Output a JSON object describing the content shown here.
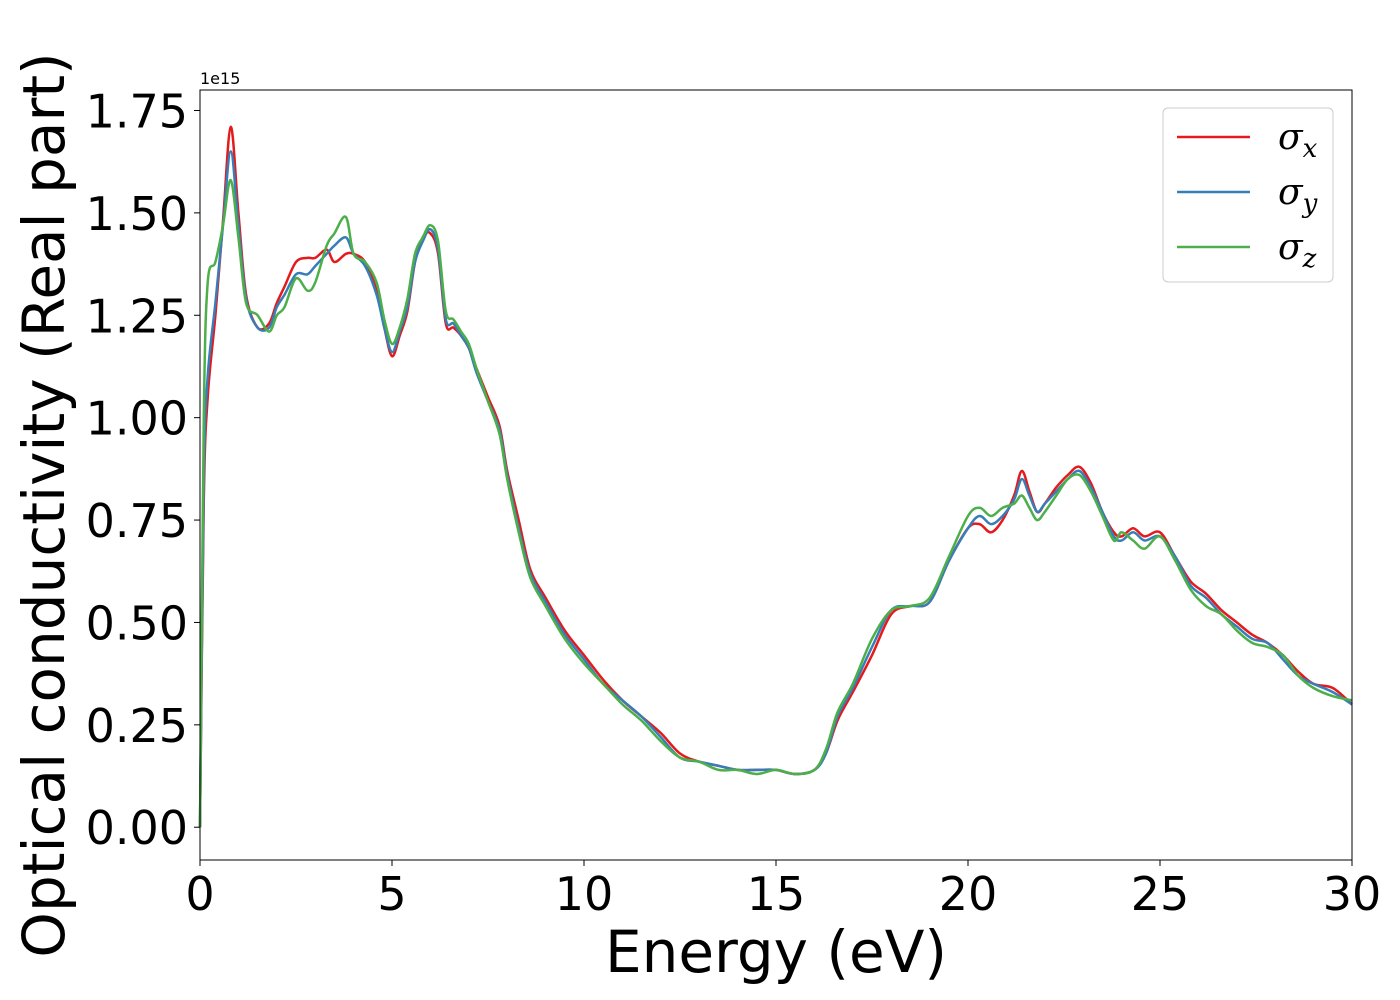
{
  "chart_data": {
    "type": "line",
    "xlabel": "Energy (eV)",
    "ylabel": "Optical conductivity (Real part)",
    "y_offset_label": "1e15",
    "xlim": [
      0,
      30
    ],
    "ylim": [
      -0.08,
      1.8
    ],
    "x_ticks": [
      0,
      5,
      10,
      15,
      20,
      25,
      30
    ],
    "x_tick_labels": [
      "0",
      "5",
      "10",
      "15",
      "20",
      "25",
      "30"
    ],
    "y_ticks": [
      0.0,
      0.25,
      0.5,
      0.75,
      1.0,
      1.25,
      1.5,
      1.75
    ],
    "y_tick_labels": [
      "0.00",
      "0.25",
      "0.50",
      "0.75",
      "1.00",
      "1.25",
      "1.50",
      "1.75"
    ],
    "grid": false,
    "legend_position": "top-right",
    "x": [
      0,
      0.1,
      0.2,
      0.4,
      0.6,
      0.8,
      1.0,
      1.2,
      1.5,
      1.8,
      2.0,
      2.2,
      2.5,
      2.8,
      3.0,
      3.3,
      3.5,
      3.8,
      4.0,
      4.3,
      4.6,
      4.8,
      5.0,
      5.2,
      5.4,
      5.6,
      5.8,
      6.0,
      6.2,
      6.4,
      6.6,
      6.8,
      7.0,
      7.2,
      7.5,
      7.8,
      8.0,
      8.3,
      8.6,
      9.0,
      9.5,
      10.0,
      10.5,
      11.0,
      11.5,
      12.0,
      12.5,
      13.0,
      13.5,
      14.0,
      14.5,
      15.0,
      15.5,
      16.0,
      16.3,
      16.6,
      17.0,
      17.5,
      18.0,
      18.5,
      19.0,
      19.5,
      20.0,
      20.3,
      20.6,
      20.9,
      21.2,
      21.4,
      21.6,
      21.8,
      22.0,
      22.3,
      22.6,
      22.9,
      23.2,
      23.5,
      23.8,
      24.0,
      24.3,
      24.6,
      25.0,
      25.4,
      25.8,
      26.2,
      26.6,
      27.0,
      27.4,
      27.8,
      28.2,
      28.6,
      29.0,
      29.5,
      30.0
    ],
    "series": [
      {
        "name": "σx",
        "color": "#e41a1c",
        "values": [
          0.0,
          0.8,
          1.05,
          1.25,
          1.48,
          1.71,
          1.5,
          1.3,
          1.22,
          1.23,
          1.28,
          1.32,
          1.38,
          1.39,
          1.39,
          1.41,
          1.38,
          1.4,
          1.4,
          1.38,
          1.31,
          1.22,
          1.15,
          1.2,
          1.26,
          1.38,
          1.44,
          1.45,
          1.4,
          1.23,
          1.22,
          1.2,
          1.17,
          1.12,
          1.05,
          0.98,
          0.87,
          0.75,
          0.63,
          0.56,
          0.48,
          0.42,
          0.36,
          0.31,
          0.27,
          0.23,
          0.18,
          0.16,
          0.15,
          0.14,
          0.14,
          0.14,
          0.13,
          0.14,
          0.18,
          0.26,
          0.33,
          0.42,
          0.52,
          0.54,
          0.55,
          0.65,
          0.73,
          0.74,
          0.72,
          0.75,
          0.81,
          0.87,
          0.82,
          0.77,
          0.79,
          0.83,
          0.86,
          0.88,
          0.84,
          0.77,
          0.72,
          0.71,
          0.73,
          0.71,
          0.72,
          0.66,
          0.6,
          0.57,
          0.53,
          0.5,
          0.47,
          0.45,
          0.42,
          0.38,
          0.35,
          0.34,
          0.3
        ]
      },
      {
        "name": "σy",
        "color": "#377eb8",
        "values": [
          0.0,
          0.85,
          1.1,
          1.28,
          1.47,
          1.65,
          1.47,
          1.29,
          1.22,
          1.22,
          1.27,
          1.3,
          1.35,
          1.35,
          1.37,
          1.4,
          1.42,
          1.44,
          1.4,
          1.37,
          1.3,
          1.22,
          1.16,
          1.21,
          1.27,
          1.38,
          1.43,
          1.46,
          1.41,
          1.24,
          1.23,
          1.2,
          1.17,
          1.11,
          1.04,
          0.97,
          0.86,
          0.73,
          0.62,
          0.55,
          0.47,
          0.41,
          0.35,
          0.31,
          0.27,
          0.22,
          0.17,
          0.16,
          0.15,
          0.14,
          0.14,
          0.14,
          0.13,
          0.14,
          0.18,
          0.27,
          0.34,
          0.44,
          0.53,
          0.54,
          0.55,
          0.65,
          0.73,
          0.76,
          0.74,
          0.76,
          0.8,
          0.85,
          0.81,
          0.77,
          0.79,
          0.82,
          0.85,
          0.87,
          0.83,
          0.77,
          0.71,
          0.7,
          0.72,
          0.7,
          0.71,
          0.66,
          0.59,
          0.56,
          0.52,
          0.49,
          0.46,
          0.45,
          0.41,
          0.37,
          0.35,
          0.33,
          0.3
        ]
      },
      {
        "name": "σz",
        "color": "#4daf4a",
        "values": [
          0.0,
          1.0,
          1.33,
          1.38,
          1.47,
          1.58,
          1.44,
          1.28,
          1.25,
          1.21,
          1.25,
          1.27,
          1.34,
          1.31,
          1.33,
          1.42,
          1.45,
          1.49,
          1.4,
          1.38,
          1.33,
          1.24,
          1.18,
          1.22,
          1.29,
          1.4,
          1.44,
          1.47,
          1.43,
          1.26,
          1.24,
          1.21,
          1.18,
          1.12,
          1.04,
          0.96,
          0.85,
          0.72,
          0.61,
          0.54,
          0.46,
          0.4,
          0.35,
          0.3,
          0.26,
          0.21,
          0.17,
          0.16,
          0.14,
          0.14,
          0.13,
          0.14,
          0.13,
          0.14,
          0.19,
          0.28,
          0.35,
          0.46,
          0.53,
          0.54,
          0.56,
          0.66,
          0.76,
          0.78,
          0.76,
          0.78,
          0.79,
          0.81,
          0.78,
          0.75,
          0.77,
          0.81,
          0.85,
          0.86,
          0.82,
          0.76,
          0.7,
          0.72,
          0.7,
          0.68,
          0.71,
          0.65,
          0.58,
          0.54,
          0.52,
          0.48,
          0.45,
          0.44,
          0.42,
          0.37,
          0.34,
          0.32,
          0.31
        ]
      }
    ]
  }
}
